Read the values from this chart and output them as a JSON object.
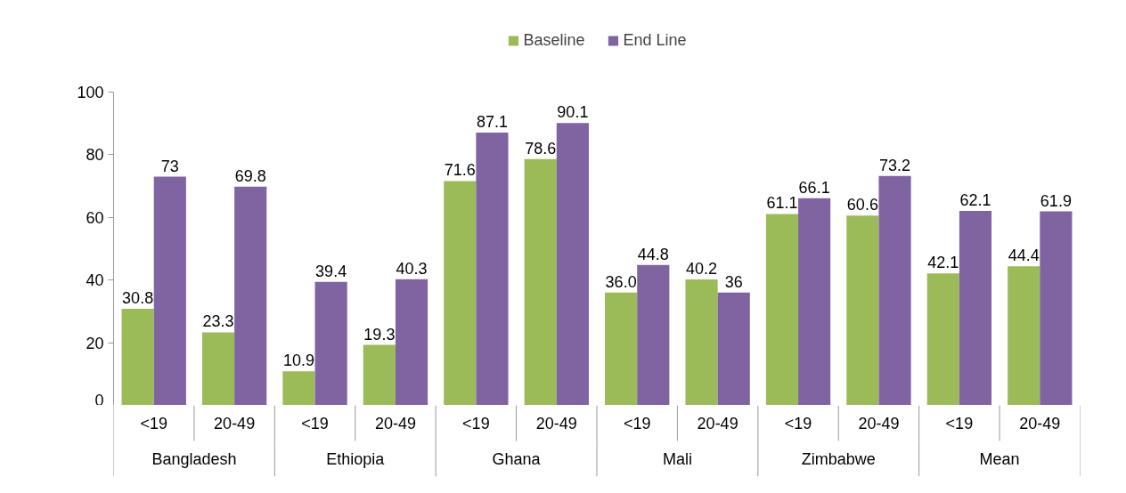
{
  "chart_data": {
    "type": "bar",
    "categories": [
      "<19",
      "20-49",
      "<19",
      "20-49",
      "<19",
      "20-49",
      "<19",
      "20-49",
      "<19",
      "20-49",
      "<19",
      "20-49"
    ],
    "annotations": [
      "Bangladesh",
      "Ethiopia",
      "Ghana",
      "Mali",
      "Zimbabwe",
      "Mean"
    ],
    "series": [
      {
        "name": "Baseline",
        "color": "#9bbb59",
        "values": [
          30.8,
          23.3,
          10.9,
          19.3,
          71.6,
          78.6,
          36.0,
          40.2,
          61.1,
          60.6,
          42.1,
          44.4
        ],
        "value_labels": [
          "30.8",
          "23.3",
          "10.9",
          "19.3",
          "71.6",
          "78.6",
          "36.0",
          "40.2",
          "61.1",
          "60.6",
          "42.1",
          "44.4"
        ]
      },
      {
        "name": "End Line",
        "color": "#8064a2",
        "values": [
          73,
          69.8,
          39.4,
          40.3,
          87.1,
          90.1,
          44.8,
          36,
          66.1,
          73.2,
          62.1,
          61.9
        ],
        "value_labels": [
          "73",
          "69.8",
          "39.4",
          "40.3",
          "87.1",
          "90.1",
          "44.8",
          "36",
          "66.1",
          "73.2",
          "62.1",
          "61.9"
        ]
      }
    ],
    "ylim": [
      0,
      100
    ],
    "yticks": [
      0,
      20,
      40,
      60,
      80,
      100
    ],
    "grid": false,
    "legend": "top"
  }
}
